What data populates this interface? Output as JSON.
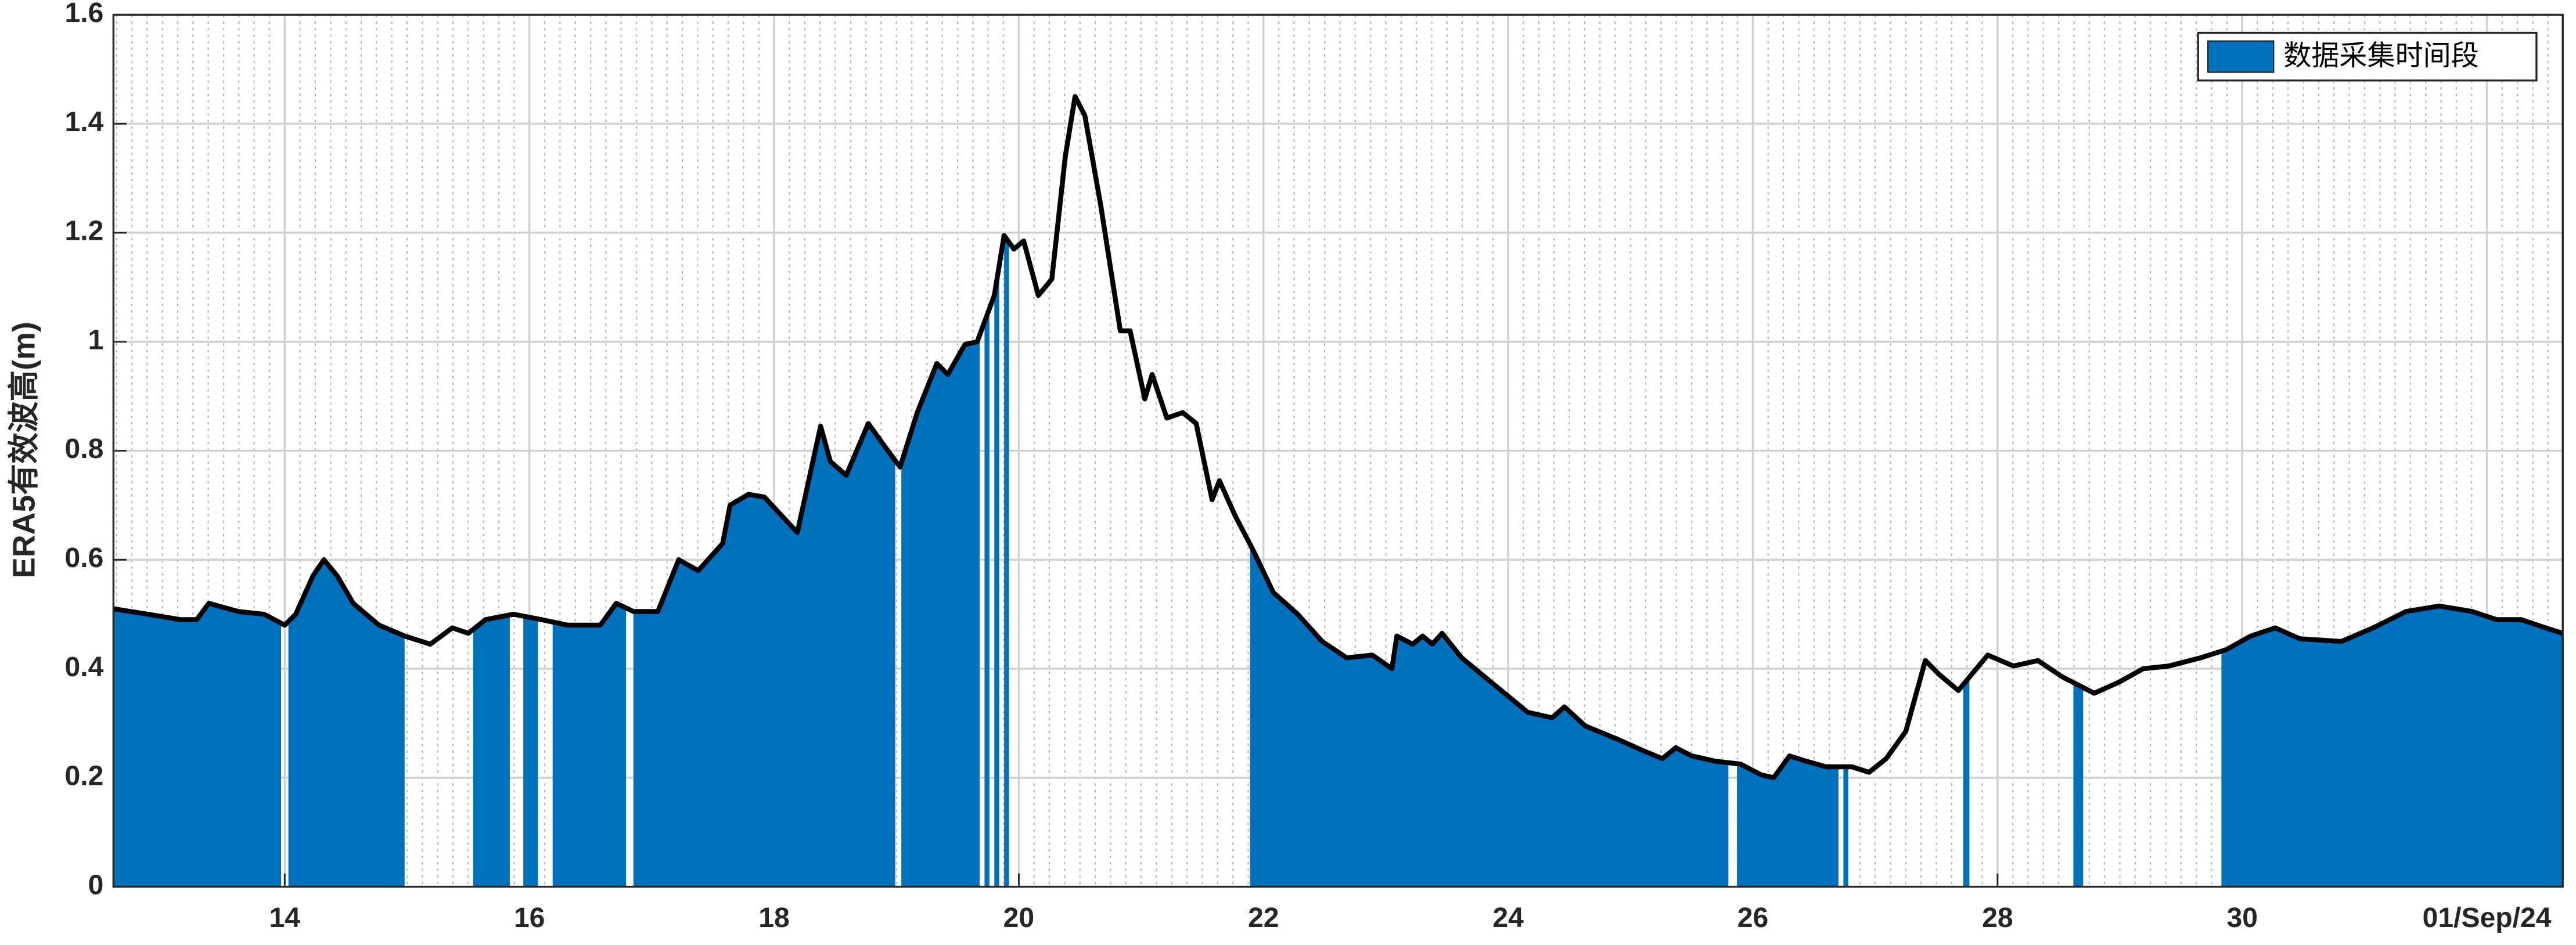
{
  "chart_data": {
    "type": "line",
    "ylabel": "ERA5有效波高(m)",
    "x": [
      12.6,
      12.88,
      13.15,
      13.28,
      13.38,
      13.62,
      13.83,
      14.0,
      14.09,
      14.23,
      14.32,
      14.43,
      14.56,
      14.77,
      14.98,
      15.19,
      15.37,
      15.5,
      15.64,
      15.87,
      16.1,
      16.31,
      16.58,
      16.71,
      16.85,
      17.05,
      17.22,
      17.38,
      17.58,
      17.64,
      17.79,
      17.92,
      18.19,
      18.38,
      18.46,
      18.59,
      18.77,
      18.93,
      19.03,
      19.17,
      19.33,
      19.42,
      19.56,
      19.66,
      19.8,
      19.88,
      19.96,
      20.04,
      20.16,
      20.27,
      20.38,
      20.46,
      20.54,
      20.67,
      20.83,
      20.91,
      21.03,
      21.09,
      21.21,
      21.34,
      21.45,
      21.58,
      21.64,
      21.77,
      21.91,
      22.08,
      22.28,
      22.48,
      22.68,
      22.89,
      23.05,
      23.09,
      23.22,
      23.3,
      23.38,
      23.46,
      23.62,
      23.89,
      24.16,
      24.36,
      24.46,
      24.63,
      24.9,
      25.1,
      25.26,
      25.37,
      25.5,
      25.7,
      25.9,
      26.07,
      26.17,
      26.3,
      26.44,
      26.6,
      26.81,
      26.95,
      27.09,
      27.25,
      27.41,
      27.52,
      27.68,
      27.79,
      27.92,
      28.13,
      28.33,
      28.53,
      28.79,
      28.99,
      29.19,
      29.4,
      29.66,
      29.87,
      30.07,
      30.27,
      30.47,
      30.81,
      31.07,
      31.34,
      31.61,
      31.88,
      32.08,
      32.28,
      32.48,
      32.62
    ],
    "line": {
      "color": "#000000",
      "values": [
        0.51,
        0.5,
        0.49,
        0.49,
        0.52,
        0.505,
        0.5,
        0.48,
        0.5,
        0.57,
        0.6,
        0.57,
        0.52,
        0.48,
        0.46,
        0.445,
        0.475,
        0.465,
        0.49,
        0.5,
        0.49,
        0.48,
        0.48,
        0.52,
        0.505,
        0.505,
        0.6,
        0.58,
        0.63,
        0.7,
        0.72,
        0.715,
        0.65,
        0.845,
        0.78,
        0.755,
        0.85,
        0.8,
        0.77,
        0.87,
        0.96,
        0.94,
        0.995,
        1.0,
        1.085,
        1.195,
        1.17,
        1.185,
        1.085,
        1.115,
        1.34,
        1.45,
        1.415,
        1.25,
        1.02,
        1.02,
        0.895,
        0.94,
        0.86,
        0.87,
        0.85,
        0.71,
        0.745,
        0.68,
        0.62,
        0.54,
        0.5,
        0.45,
        0.42,
        0.425,
        0.4,
        0.46,
        0.445,
        0.46,
        0.445,
        0.465,
        0.42,
        0.37,
        0.32,
        0.31,
        0.33,
        0.295,
        0.27,
        0.25,
        0.235,
        0.255,
        0.24,
        0.23,
        0.225,
        0.205,
        0.2,
        0.24,
        0.23,
        0.22,
        0.22,
        0.21,
        0.235,
        0.285,
        0.415,
        0.39,
        0.36,
        0.39,
        0.425,
        0.405,
        0.415,
        0.385,
        0.355,
        0.375,
        0.4,
        0.405,
        0.42,
        0.435,
        0.46,
        0.475,
        0.455,
        0.45,
        0.475,
        0.505,
        0.515,
        0.505,
        0.49,
        0.49,
        0.475,
        0.465
      ]
    },
    "periods": {
      "name": "数据采集时间段",
      "color": "#0072bd",
      "intervals": [
        [
          12.6,
          13.97
        ],
        [
          14.03,
          14.98
        ],
        [
          15.54,
          15.84
        ],
        [
          15.95,
          16.07
        ],
        [
          16.19,
          16.79
        ],
        [
          16.85,
          18.99
        ],
        [
          19.04,
          19.68
        ],
        [
          19.72,
          19.76
        ],
        [
          19.8,
          19.84
        ],
        [
          19.88,
          19.92
        ],
        [
          21.89,
          25.8
        ],
        [
          25.87,
          26.7
        ],
        [
          26.74,
          26.78
        ],
        [
          27.72,
          27.77
        ],
        [
          28.62,
          28.7
        ],
        [
          29.83,
          32.62
        ]
      ]
    },
    "xlim": [
      12.6,
      32.62
    ],
    "xticks": [
      14,
      16,
      18,
      20,
      22,
      24,
      26,
      28,
      30,
      {
        "value": 32,
        "label": "01/Sep/24"
      }
    ],
    "xminor_step": 0.125,
    "ylim": [
      0,
      1.6
    ],
    "yticks": [
      0,
      0.2,
      0.4,
      0.6,
      0.8,
      1,
      1.2,
      1.4,
      1.6
    ],
    "grid": true,
    "legend": "top-right"
  }
}
